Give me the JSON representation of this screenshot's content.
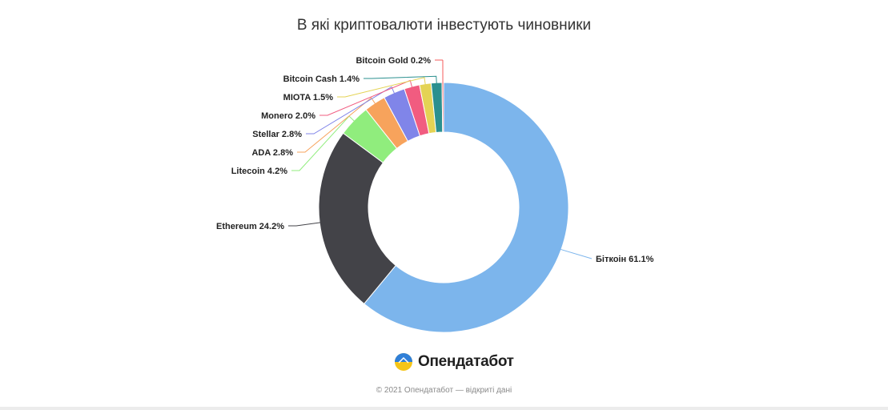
{
  "title": "В які криптовалюти інвестують чиновники",
  "brand": {
    "name": "Опендатабот",
    "icon": "opendatabot-logo-icon"
  },
  "footer": "© 2021 Опендатабот — відкриті дані",
  "chart_data": {
    "type": "pie",
    "donut": true,
    "title": "В які криптовалюти інвестують чиновники",
    "slices": [
      {
        "name": "Біткоін",
        "value": 61.1,
        "label": "Біткоін 61.1%",
        "color": "#7cb5ec"
      },
      {
        "name": "Ethereum",
        "value": 24.2,
        "label": "Ethereum 24.2%",
        "color": "#434348"
      },
      {
        "name": "Litecoin",
        "value": 4.2,
        "label": "Litecoin 4.2%",
        "color": "#90ed7d"
      },
      {
        "name": "ADA",
        "value": 2.8,
        "label": "ADA 2.8%",
        "color": "#f7a35c"
      },
      {
        "name": "Stellar",
        "value": 2.8,
        "label": "Stellar 2.8%",
        "color": "#8085e9"
      },
      {
        "name": "Monero",
        "value": 2.0,
        "label": "Monero 2.0%",
        "color": "#f15c80"
      },
      {
        "name": "MIOTA",
        "value": 1.5,
        "label": "MIOTA 1.5%",
        "color": "#e4d354"
      },
      {
        "name": "Bitcoin Cash",
        "value": 1.4,
        "label": "Bitcoin Cash 1.4%",
        "color": "#2b908f"
      },
      {
        "name": "Bitcoin Gold",
        "value": 0.2,
        "label": "Bitcoin Gold 0.2%",
        "color": "#f45b5b"
      }
    ]
  }
}
